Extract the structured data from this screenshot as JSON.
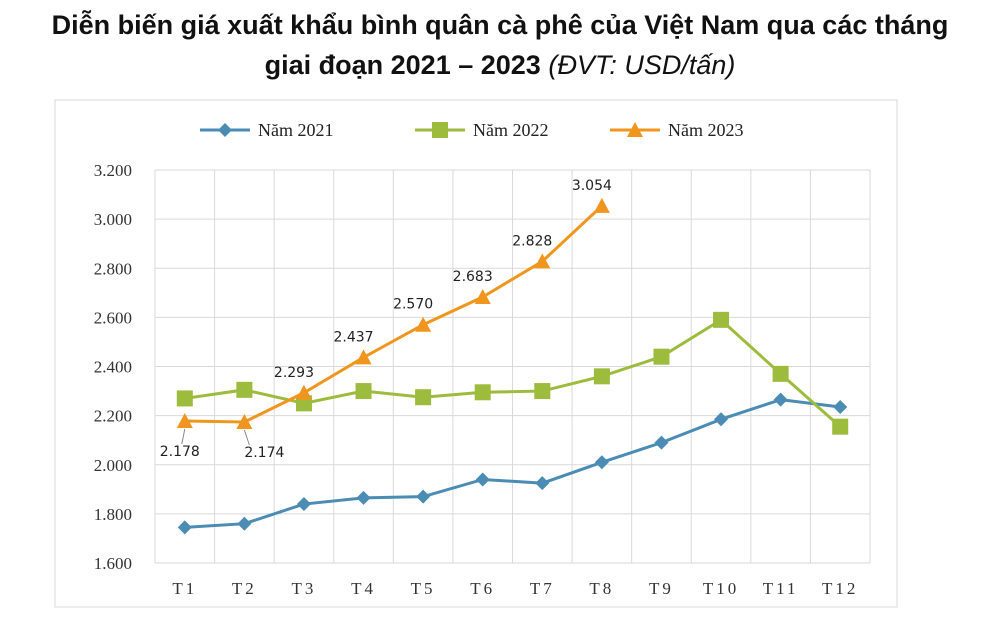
{
  "chart_data": {
    "type": "line",
    "title": [
      "Diễn biến giá xuất khẩu bình quân cà phê của Việt Nam qua các tháng",
      "giai đoạn 2021 – 2023",
      "(ĐVT: USD/tấn)"
    ],
    "categories": [
      "T1",
      "T2",
      "T3",
      "T4",
      "T5",
      "T6",
      "T7",
      "T8",
      "T9",
      "T10",
      "T11",
      "T12"
    ],
    "series": [
      {
        "name": "Năm 2021",
        "color": "#4a8cb4",
        "marker": "diamond",
        "values": [
          1745,
          1760,
          1840,
          1865,
          1870,
          1940,
          1925,
          2010,
          2090,
          2185,
          2265,
          2235
        ]
      },
      {
        "name": "Năm 2022",
        "color": "#9dbb3c",
        "marker": "square",
        "values": [
          2270,
          2305,
          2250,
          2300,
          2275,
          2295,
          2300,
          2360,
          2440,
          2590,
          2370,
          2155
        ]
      },
      {
        "name": "Năm 2023",
        "color": "#f0961e",
        "marker": "triangle",
        "values": [
          2178,
          2174,
          2293,
          2437,
          2570,
          2683,
          2828,
          3054,
          null,
          null,
          null,
          null
        ],
        "value_labels": [
          "2.178",
          "2.174",
          "2.293",
          "2.437",
          "2.570",
          "2.683",
          "2.828",
          "3.054",
          null,
          null,
          null,
          null
        ]
      }
    ],
    "ylim": [
      1600,
      3200
    ],
    "yticks": [
      {
        "value": 1600,
        "label": "1.600"
      },
      {
        "value": 1800,
        "label": "1.800"
      },
      {
        "value": 2000,
        "label": "2.000"
      },
      {
        "value": 2200,
        "label": "2.200"
      },
      {
        "value": 2400,
        "label": "2.400"
      },
      {
        "value": 2600,
        "label": "2.600"
      },
      {
        "value": 2800,
        "label": "2.800"
      },
      {
        "value": 3000,
        "label": "3.000"
      },
      {
        "value": 3200,
        "label": "3.200"
      }
    ],
    "grid": true,
    "legend": "top"
  }
}
